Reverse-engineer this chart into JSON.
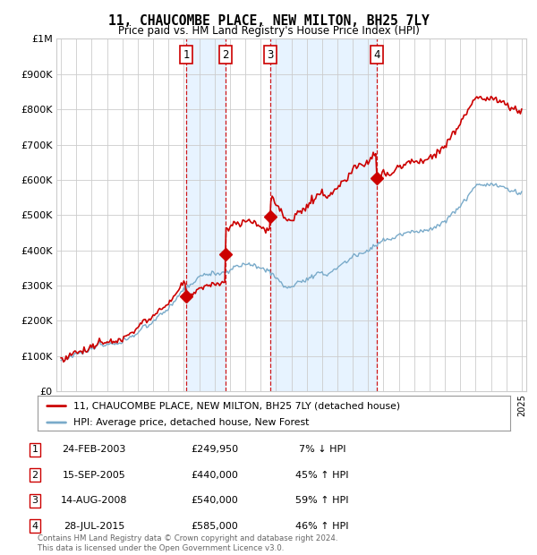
{
  "title": "11, CHAUCOMBE PLACE, NEW MILTON, BH25 7LY",
  "subtitle": "Price paid vs. HM Land Registry's House Price Index (HPI)",
  "legend_line1": "11, CHAUCOMBE PLACE, NEW MILTON, BH25 7LY (detached house)",
  "legend_line2": "HPI: Average price, detached house, New Forest",
  "footer": "Contains HM Land Registry data © Crown copyright and database right 2024.\nThis data is licensed under the Open Government Licence v3.0.",
  "transactions": [
    {
      "num": 1,
      "date": "24-FEB-2003",
      "price": 249950,
      "pct": "7%",
      "dir": "↓",
      "year_x": 2003.15
    },
    {
      "num": 2,
      "date": "15-SEP-2005",
      "price": 440000,
      "pct": "45%",
      "dir": "↑",
      "year_x": 2005.71
    },
    {
      "num": 3,
      "date": "14-AUG-2008",
      "price": 540000,
      "pct": "59%",
      "dir": "↑",
      "year_x": 2008.62
    },
    {
      "num": 4,
      "date": "28-JUL-2015",
      "price": 585000,
      "pct": "46%",
      "dir": "↑",
      "year_x": 2015.57
    }
  ],
  "red_color": "#cc0000",
  "blue_color": "#7aabca",
  "background_color": "#ffffff",
  "grid_color": "#cccccc",
  "shade_color": "#ddeeff",
  "ylim": [
    0,
    1000000
  ],
  "xlim": [
    1994.7,
    2025.3
  ],
  "yticks": [
    0,
    100000,
    200000,
    300000,
    400000,
    500000,
    600000,
    700000,
    800000,
    900000,
    1000000
  ],
  "ylabel_map": {
    "0": "£0",
    "100000": "£100K",
    "200000": "£200K",
    "300000": "£300K",
    "400000": "£400K",
    "500000": "£500K",
    "600000": "£600K",
    "700000": "£700K",
    "800000": "£800K",
    "900000": "£900K",
    "1000000": "£1M"
  }
}
